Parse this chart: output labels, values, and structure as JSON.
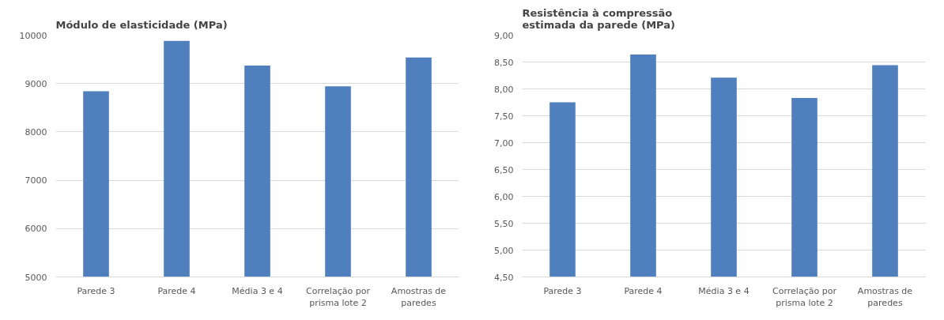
{
  "chart_data": [
    {
      "type": "bar",
      "title": "Módulo de elasticidade (MPa)",
      "categories": [
        "Parede 3",
        "Parede 4",
        "Média 3 e 4",
        "Correlação por prisma lote 2",
        "Amostras de paredes"
      ],
      "series": [
        {
          "color": "#4f7fbc",
          "values": [
            8840,
            9880,
            9370,
            8940,
            9540
          ]
        }
      ],
      "ylim": [
        5000,
        10000
      ],
      "yticks": [
        5000,
        6000,
        7000,
        8000,
        9000,
        10000
      ],
      "grid": "y"
    },
    {
      "type": "bar",
      "title": "Resistência à compressão\nestimada da parede (MPa)",
      "categories": [
        "Parede 3",
        "Parede 4",
        "Média 3 e 4",
        "Correlação por prisma lote 2",
        "Amostras de paredes"
      ],
      "series": [
        {
          "color": "#4f7fbc",
          "values": [
            7.75,
            8.64,
            8.21,
            7.83,
            8.44
          ]
        }
      ],
      "ylim": [
        4.5,
        9.0
      ],
      "yticks": [
        {
          "value": 4.5,
          "label": "4,50"
        },
        {
          "value": 5.0,
          "label": "5,00"
        },
        {
          "value": 5.5,
          "label": "5,50"
        },
        {
          "value": 6.0,
          "label": "6,00"
        },
        {
          "value": 6.5,
          "label": "6,50"
        },
        {
          "value": 7.0,
          "label": "7,00"
        },
        {
          "value": 7.5,
          "label": "7,50"
        },
        {
          "value": 8.0,
          "label": "8,00"
        },
        {
          "value": 8.5,
          "label": "8,50"
        },
        {
          "value": 9.0,
          "label": "9,00"
        }
      ],
      "grid": "y"
    }
  ]
}
